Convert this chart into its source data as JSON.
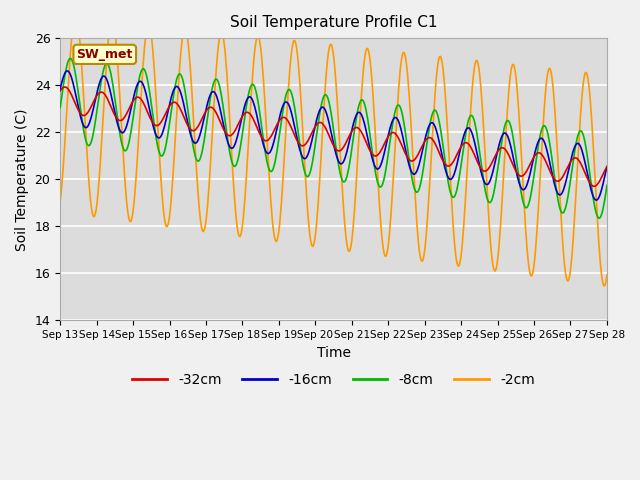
{
  "title": "Soil Temperature Profile C1",
  "xlabel": "Time",
  "ylabel": "Soil Temperature (C)",
  "ylim": [
    14,
    26
  ],
  "background_color": "#f0f0f0",
  "plot_bg_color": "#dcdcdc",
  "annotation_text": "SW_met",
  "annotation_bg": "#ffffcc",
  "annotation_border": "#bb8800",
  "annotation_text_color": "#880000",
  "colors": {
    "-32cm": "#dd0000",
    "-16cm": "#0000cc",
    "-8cm": "#00bb00",
    "-2cm": "#ff9900"
  },
  "legend_labels": [
    "-32cm",
    "-16cm",
    "-8cm",
    "-2cm"
  ],
  "xtick_labels": [
    "Sep 13",
    "Sep 14",
    "Sep 15",
    "Sep 16",
    "Sep 17",
    "Sep 18",
    "Sep 19",
    "Sep 20",
    "Sep 21",
    "Sep 22",
    "Sep 23",
    "Sep 24",
    "Sep 25",
    "Sep 26",
    "Sep 27",
    "Sep 28"
  ],
  "yticks": [
    14,
    16,
    18,
    20,
    22,
    24,
    26
  ],
  "grid_color": "#ffffff",
  "line_width": 1.2,
  "figsize": [
    6.4,
    4.8
  ],
  "dpi": 100
}
